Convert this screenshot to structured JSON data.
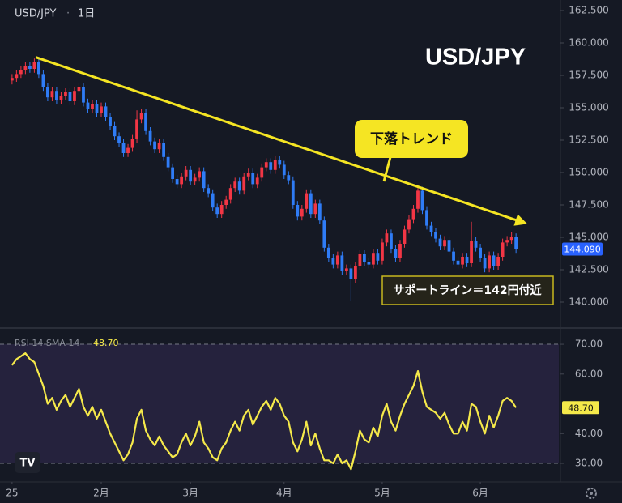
{
  "chart_data": [
    {
      "type": "candlestick",
      "title": "USD/JPY",
      "symbol": "USD/JPY",
      "interval": "1日",
      "up_color": "#f23645",
      "down_color": "#2f7cf6",
      "xlim": [
        -2.7,
        122.6
      ],
      "ylim": [
        138.3125,
        163.3125
      ],
      "yticks": [
        {
          "value": 140,
          "label": "140.000"
        },
        {
          "value": 142.5,
          "label": "142.500"
        },
        {
          "value": 145,
          "label": "145.000"
        },
        {
          "value": 147.5,
          "label": "147.500"
        },
        {
          "value": 150,
          "label": "150.000"
        },
        {
          "value": 152.5,
          "label": "152.500"
        },
        {
          "value": 155,
          "label": "155.000"
        },
        {
          "value": 157.5,
          "label": "157.500"
        },
        {
          "value": 160,
          "label": "160.000"
        },
        {
          "value": 162.5,
          "label": "162.500"
        }
      ],
      "last_label": "144.090",
      "trendline": {
        "x": [
          5.3,
          115
        ],
        "values": [
          158.9,
          146.1
        ],
        "color": "#f5e523"
      },
      "callouts": [
        "下落トレンド",
        "サポートライン＝142円付近"
      ],
      "values": [
        [
          157.1,
          157.6,
          156.8,
          157.3
        ],
        [
          157.3,
          157.9,
          157.0,
          157.6
        ],
        [
          157.6,
          158.2,
          157.3,
          157.9
        ],
        [
          157.9,
          158.5,
          157.6,
          158.2
        ],
        [
          158.2,
          158.5,
          157.7,
          158.0
        ],
        [
          158.0,
          158.8,
          157.7,
          158.5
        ],
        [
          158.5,
          158.8,
          157.3,
          157.6
        ],
        [
          157.6,
          157.9,
          156.3,
          156.6
        ],
        [
          156.6,
          156.9,
          155.5,
          155.8
        ],
        [
          155.8,
          156.6,
          155.5,
          156.3
        ],
        [
          156.3,
          156.6,
          155.3,
          155.6
        ],
        [
          155.6,
          156.2,
          155.3,
          155.9
        ],
        [
          155.9,
          156.5,
          155.6,
          156.2
        ],
        [
          156.2,
          156.5,
          155.2,
          155.5
        ],
        [
          155.5,
          156.6,
          155.2,
          156.3
        ],
        [
          156.3,
          156.9,
          156.0,
          156.6
        ],
        [
          156.6,
          156.9,
          155.1,
          155.4
        ],
        [
          155.4,
          155.7,
          154.6,
          154.9
        ],
        [
          154.9,
          155.6,
          154.6,
          155.3
        ],
        [
          155.3,
          155.6,
          154.3,
          154.6
        ],
        [
          154.6,
          155.4,
          154.3,
          155.1
        ],
        [
          155.1,
          155.4,
          154.0,
          154.3
        ],
        [
          154.3,
          154.6,
          153.3,
          153.6
        ],
        [
          153.6,
          153.9,
          152.5,
          152.8
        ],
        [
          152.8,
          153.1,
          152.0,
          152.3
        ],
        [
          152.3,
          152.6,
          151.2,
          151.5
        ],
        [
          151.5,
          152.2,
          151.2,
          151.9
        ],
        [
          151.9,
          152.9,
          151.6,
          152.6
        ],
        [
          152.6,
          154.8,
          152.3,
          154.1
        ],
        [
          154.1,
          154.9,
          153.8,
          154.6
        ],
        [
          154.6,
          154.9,
          152.9,
          153.2
        ],
        [
          153.2,
          153.5,
          152.1,
          152.4
        ],
        [
          152.4,
          152.7,
          151.5,
          151.8
        ],
        [
          151.8,
          152.6,
          151.5,
          152.3
        ],
        [
          152.3,
          152.6,
          150.9,
          151.2
        ],
        [
          151.2,
          151.5,
          150.1,
          150.4
        ],
        [
          150.4,
          150.7,
          149.2,
          149.5
        ],
        [
          149.5,
          149.8,
          148.8,
          149.1
        ],
        [
          149.1,
          150.0,
          148.8,
          149.7
        ],
        [
          149.7,
          150.5,
          149.4,
          150.2
        ],
        [
          150.2,
          150.5,
          149.0,
          149.3
        ],
        [
          149.3,
          149.9,
          149.0,
          149.6
        ],
        [
          149.6,
          150.4,
          149.3,
          150.1
        ],
        [
          150.1,
          150.4,
          148.5,
          148.8
        ],
        [
          148.8,
          149.1,
          148.1,
          148.4
        ],
        [
          148.4,
          148.7,
          147.0,
          147.3
        ],
        [
          147.3,
          147.6,
          146.5,
          146.8
        ],
        [
          146.8,
          147.8,
          146.5,
          147.5
        ],
        [
          147.5,
          148.2,
          147.2,
          147.9
        ],
        [
          147.9,
          149.1,
          147.6,
          148.8
        ],
        [
          148.8,
          149.6,
          148.5,
          149.3
        ],
        [
          149.3,
          149.6,
          148.3,
          148.6
        ],
        [
          148.6,
          150.0,
          148.3,
          149.7
        ],
        [
          149.7,
          150.3,
          149.4,
          150.0
        ],
        [
          150.0,
          150.3,
          148.8,
          149.1
        ],
        [
          149.1,
          149.9,
          148.8,
          149.6
        ],
        [
          149.6,
          150.7,
          149.3,
          150.4
        ],
        [
          150.4,
          151.1,
          150.1,
          150.8
        ],
        [
          150.8,
          151.1,
          149.9,
          150.2
        ],
        [
          150.2,
          151.3,
          149.9,
          151.0
        ],
        [
          151.0,
          151.3,
          150.3,
          150.6
        ],
        [
          150.6,
          150.9,
          149.5,
          149.8
        ],
        [
          149.8,
          150.1,
          149.1,
          149.4
        ],
        [
          149.4,
          149.7,
          147.2,
          147.5
        ],
        [
          147.5,
          147.8,
          146.3,
          146.6
        ],
        [
          146.6,
          147.5,
          146.3,
          147.2
        ],
        [
          147.2,
          148.7,
          146.9,
          148.4
        ],
        [
          148.4,
          148.7,
          146.5,
          146.8
        ],
        [
          146.8,
          147.9,
          146.5,
          147.6
        ],
        [
          147.6,
          147.9,
          146.0,
          146.3
        ],
        [
          146.3,
          146.6,
          143.9,
          144.2
        ],
        [
          144.2,
          144.5,
          143.1,
          143.4
        ],
        [
          143.4,
          143.7,
          142.6,
          142.9
        ],
        [
          142.9,
          143.9,
          142.6,
          143.6
        ],
        [
          143.6,
          143.9,
          142.1,
          142.4
        ],
        [
          142.4,
          142.9,
          142.1,
          142.6
        ],
        [
          142.6,
          142.9,
          140.1,
          141.8
        ],
        [
          141.8,
          143.1,
          141.5,
          142.8
        ],
        [
          142.8,
          144.0,
          142.5,
          143.7
        ],
        [
          143.7,
          144.0,
          142.8,
          143.1
        ],
        [
          143.1,
          143.4,
          142.6,
          142.9
        ],
        [
          142.9,
          144.1,
          142.6,
          143.8
        ],
        [
          143.8,
          144.1,
          142.9,
          143.2
        ],
        [
          143.2,
          144.9,
          142.9,
          144.6
        ],
        [
          144.6,
          145.6,
          144.3,
          145.3
        ],
        [
          145.3,
          145.6,
          143.8,
          144.1
        ],
        [
          144.1,
          144.4,
          143.1,
          143.4
        ],
        [
          143.4,
          144.8,
          143.1,
          144.5
        ],
        [
          144.5,
          145.9,
          144.2,
          145.6
        ],
        [
          145.6,
          146.7,
          145.3,
          146.4
        ],
        [
          146.4,
          147.5,
          146.1,
          147.2
        ],
        [
          147.2,
          148.8,
          146.9,
          148.6
        ],
        [
          148.6,
          148.9,
          146.8,
          147.1
        ],
        [
          147.1,
          147.4,
          145.6,
          145.9
        ],
        [
          145.9,
          146.2,
          145.1,
          145.4
        ],
        [
          145.4,
          145.7,
          144.6,
          144.9
        ],
        [
          144.9,
          145.2,
          144.0,
          144.3
        ],
        [
          144.3,
          145.1,
          144.0,
          144.8
        ],
        [
          144.8,
          145.1,
          143.6,
          143.9
        ],
        [
          143.9,
          144.2,
          142.9,
          143.2
        ],
        [
          143.2,
          143.5,
          142.6,
          142.9
        ],
        [
          142.9,
          143.8,
          142.6,
          143.5
        ],
        [
          143.5,
          143.8,
          142.7,
          143.0
        ],
        [
          143.0,
          146.2,
          142.7,
          144.7
        ],
        [
          144.7,
          145.0,
          143.9,
          144.2
        ],
        [
          144.2,
          144.5,
          143.1,
          143.4
        ],
        [
          143.4,
          143.7,
          142.3,
          142.6
        ],
        [
          142.6,
          143.9,
          142.3,
          143.6
        ],
        [
          143.6,
          143.9,
          142.5,
          142.8
        ],
        [
          142.8,
          143.8,
          142.5,
          143.5
        ],
        [
          143.5,
          144.9,
          143.2,
          144.6
        ],
        [
          144.6,
          145.1,
          144.3,
          144.8
        ],
        [
          144.8,
          145.4,
          144.5,
          145.0
        ],
        [
          145.0,
          145.3,
          143.8,
          144.09
        ]
      ]
    },
    {
      "type": "line",
      "legend": "RSI 14 SMA 14",
      "last_label": "48.70",
      "color": "#f5e94a",
      "band": [
        30,
        70
      ],
      "xlim": [
        -2.7,
        122.6
      ],
      "ylim": [
        25.1,
        74.1
      ],
      "yticks": [
        {
          "value": 30,
          "label": "30.00"
        },
        {
          "value": 40,
          "label": "40.00"
        },
        {
          "value": 60,
          "label": "60.00"
        },
        {
          "value": 70,
          "label": "70.00"
        }
      ],
      "xticks": [
        {
          "value": 0,
          "label": "25"
        },
        {
          "value": 20,
          "label": "2月"
        },
        {
          "value": 40,
          "label": "3月"
        },
        {
          "value": 61,
          "label": "4月"
        },
        {
          "value": 83,
          "label": "5月"
        },
        {
          "value": 105,
          "label": "6月"
        }
      ],
      "values": [
        63,
        65,
        66,
        67,
        65,
        64,
        60,
        56,
        50,
        52,
        48,
        51,
        53,
        49,
        52,
        55,
        49,
        46,
        49,
        45,
        48,
        44,
        40,
        37,
        34,
        31,
        33,
        37,
        45,
        48,
        41,
        38,
        36,
        39,
        36,
        34,
        32,
        33,
        37,
        40,
        36,
        39,
        44,
        37,
        35,
        32,
        31,
        35,
        37,
        41,
        44,
        41,
        46,
        48,
        43,
        46,
        49,
        51,
        48,
        52,
        50,
        46,
        44,
        37,
        34,
        38,
        44,
        36,
        40,
        35,
        31,
        31,
        30,
        33,
        30,
        31,
        28,
        34,
        41,
        38,
        37,
        42,
        39,
        46,
        50,
        44,
        41,
        46,
        50,
        53,
        56,
        61,
        54,
        49,
        48,
        47,
        45,
        47,
        43,
        40,
        40,
        44,
        41,
        50,
        49,
        44,
        40,
        46,
        42,
        46,
        51,
        52,
        51,
        48.7
      ]
    }
  ]
}
